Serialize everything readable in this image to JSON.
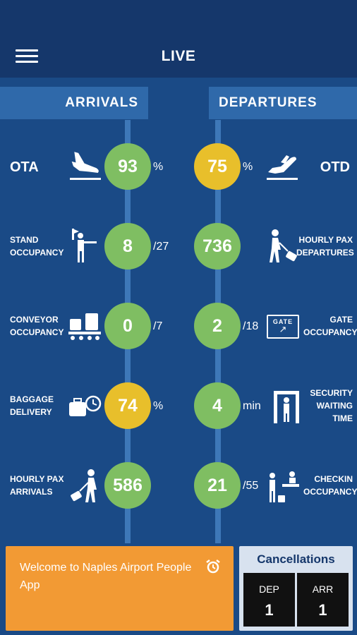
{
  "header": {
    "title": "LIVE",
    "menu_icon": "hamburger-icon"
  },
  "tabs": {
    "arrivals": "ARRIVALS",
    "departures": "DEPARTURES"
  },
  "arrivals": [
    {
      "label": "OTA",
      "value": "93",
      "unit": "%",
      "color": "green",
      "icon": "plane-landing-icon"
    },
    {
      "label_line1": "STAND",
      "label_line2": "OCCUPANCY",
      "value": "8",
      "unit": "/27",
      "color": "green",
      "icon": "marshaller-icon"
    },
    {
      "label_line1": "CONVEYOR",
      "label_line2": "OCCUPANCY",
      "value": "0",
      "unit": "/7",
      "color": "green",
      "icon": "conveyor-icon"
    },
    {
      "label_line1": "BAGGAGE",
      "label_line2": "DELIVERY",
      "value": "74",
      "unit": "%",
      "color": "yellow",
      "icon": "baggage-clock-icon"
    },
    {
      "label_line1": "HOURLY PAX",
      "label_line2": "ARRIVALS",
      "value": "586",
      "unit": "",
      "color": "green",
      "icon": "traveler-icon"
    }
  ],
  "departures": [
    {
      "label": "OTD",
      "value": "75",
      "unit": "%",
      "color": "yellow",
      "icon": "plane-takeoff-icon"
    },
    {
      "label_line1": "HOURLY PAX",
      "label_line2": "DEPARTURES",
      "value": "736",
      "unit": "",
      "color": "green",
      "icon": "traveler-icon"
    },
    {
      "label_line1": "GATE",
      "label_line2": "OCCUPANCY",
      "value": "2",
      "unit": "/18",
      "color": "green",
      "icon": "gate-sign-icon",
      "icon_text": "GATE"
    },
    {
      "label_line1": "SECURITY",
      "label_line2": "WAITING",
      "label_line3": "TIME",
      "value": "4",
      "unit": "min",
      "color": "green",
      "icon": "security-scanner-icon"
    },
    {
      "label_line1": "CHECKIN",
      "label_line2": "OCCUPANCY",
      "value": "21",
      "unit": "/55",
      "color": "green",
      "icon": "checkin-desk-icon"
    }
  ],
  "welcome": {
    "text": "Welcome to Naples Airport People App",
    "icon": "alarm-clock-icon"
  },
  "cancellations": {
    "title": "Cancellations",
    "dep_label": "DEP",
    "dep_value": "1",
    "arr_label": "ARR",
    "arr_value": "1"
  },
  "colors": {
    "header_bg": "#15376b",
    "body_bg": "#1a4a86",
    "tab_bg": "#2f69aa",
    "green": "#7fbe62",
    "yellow": "#e8bf2b",
    "welcome_bg": "#f29a34"
  }
}
